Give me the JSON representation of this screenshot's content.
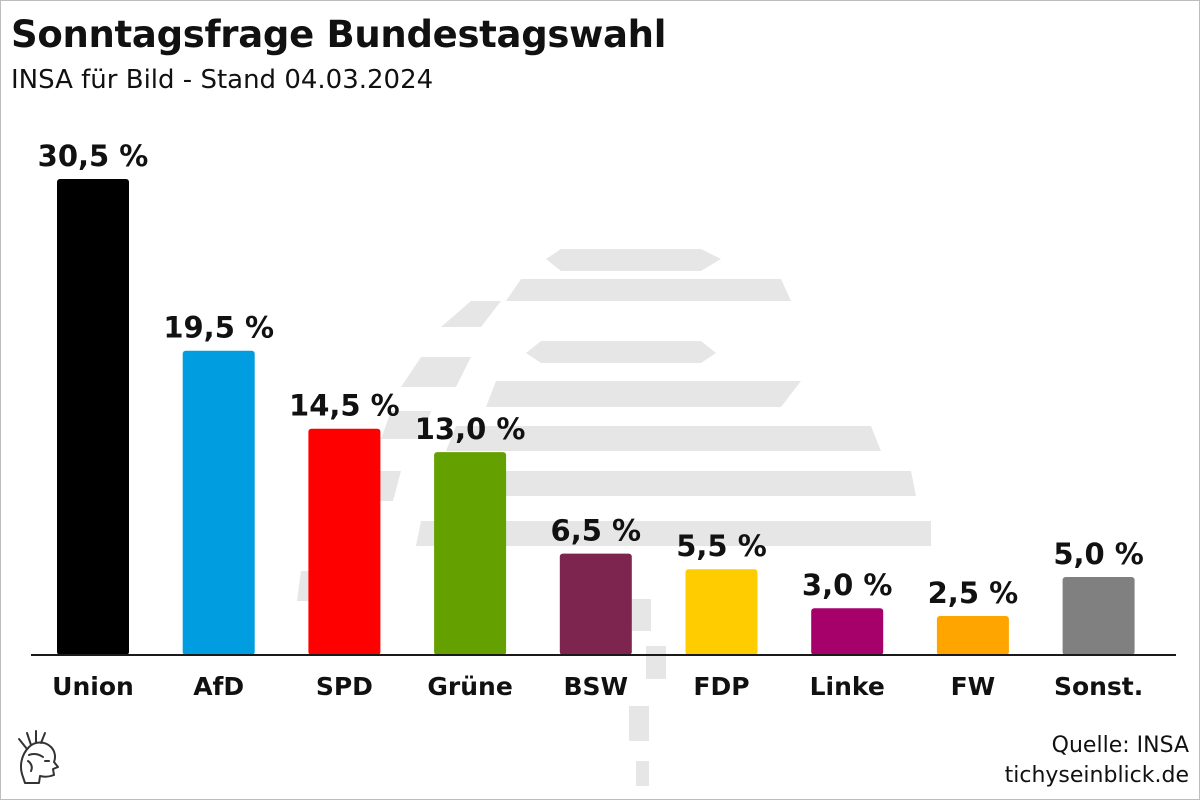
{
  "header": {
    "title": "Sonntagsfrage Bundestagswahl",
    "subtitle": "INSA für Bild - Stand 04.03.2024"
  },
  "footer": {
    "source": "Quelle: INSA",
    "website": "tichyseinblick.de"
  },
  "logo": {
    "icon": "hermes-head-logo-icon"
  },
  "chart_data": {
    "type": "bar",
    "title": "Sonntagsfrage Bundestagswahl",
    "subtitle": "INSA für Bild - Stand 04.03.2024",
    "xlabel": "",
    "ylabel": "",
    "ylim": [
      0,
      30.5
    ],
    "grid": false,
    "legend": "none",
    "categories": [
      "Union",
      "AfD",
      "SPD",
      "Grüne",
      "BSW",
      "FDP",
      "Linke",
      "FW",
      "Sonst."
    ],
    "values": [
      30.5,
      19.5,
      14.5,
      13.0,
      6.5,
      5.5,
      3.0,
      2.5,
      5.0
    ],
    "value_labels": [
      "30,5 %",
      "19,5 %",
      "14,5 %",
      "13,0 %",
      "6,5 %",
      "5,5 %",
      "3,0 %",
      "2,5 %",
      "5,0 %"
    ],
    "colors": [
      "#000000",
      "#009ee0",
      "#ff0000",
      "#64a000",
      "#7d254f",
      "#ffcc00",
      "#a6006b",
      "#ffa500",
      "#808080"
    ]
  }
}
